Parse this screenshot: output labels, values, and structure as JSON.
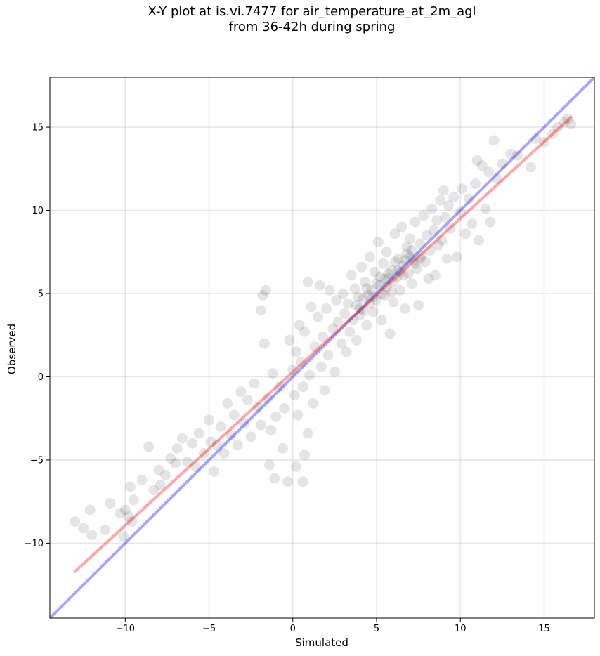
{
  "chart_data": {
    "type": "scatter",
    "title_line1": "X-Y plot at is.vi.7477 for air_temperature_at_2m_agl",
    "title_line2": "from 36-42h during spring",
    "xlabel": "Simulated",
    "ylabel": "Observed",
    "xlim": [
      -14.5,
      18.0
    ],
    "ylim": [
      -14.5,
      18.0
    ],
    "xticks": [
      -10,
      -5,
      0,
      5,
      10,
      15
    ],
    "yticks": [
      -10,
      -5,
      0,
      5,
      10,
      15
    ],
    "tick_labels": [
      "−10",
      "−5",
      "0",
      "5",
      "10",
      "15"
    ],
    "grid": true,
    "point_color": "#000000",
    "point_alpha": 0.1,
    "lines": [
      {
        "role": "one-to-one",
        "color": "#0000ff",
        "alpha": 0.35,
        "x": [
          -14.5,
          18.0
        ],
        "y": [
          -14.5,
          18.0
        ]
      },
      {
        "role": "regression",
        "color": "#ff0000",
        "alpha": 0.35,
        "x": [
          -13.0,
          16.6
        ],
        "y": [
          -11.7,
          15.6
        ]
      }
    ],
    "points": [
      [
        -13.0,
        -8.7
      ],
      [
        -12.5,
        -9.1
      ],
      [
        -12.1,
        -8.0
      ],
      [
        -12.0,
        -9.5
      ],
      [
        -11.2,
        -9.2
      ],
      [
        -10.9,
        -7.6
      ],
      [
        -10.3,
        -8.2
      ],
      [
        -10.1,
        -9.6
      ],
      [
        -10.0,
        -8.0
      ],
      [
        -9.8,
        -8.4
      ],
      [
        -9.6,
        -8.7
      ],
      [
        -9.5,
        -7.4
      ],
      [
        -9.7,
        -6.6
      ],
      [
        -9.0,
        -6.2
      ],
      [
        -8.6,
        -4.2
      ],
      [
        -8.3,
        -6.8
      ],
      [
        -8.0,
        -5.6
      ],
      [
        -7.9,
        -6.5
      ],
      [
        -7.6,
        -5.9
      ],
      [
        -7.3,
        -4.9
      ],
      [
        -7.0,
        -5.2
      ],
      [
        -6.9,
        -4.3
      ],
      [
        -6.6,
        -3.7
      ],
      [
        -6.3,
        -5.1
      ],
      [
        -6.0,
        -4.0
      ],
      [
        -5.8,
        -5.4
      ],
      [
        -5.6,
        -3.4
      ],
      [
        -5.3,
        -4.6
      ],
      [
        -5.0,
        -2.6
      ],
      [
        -4.9,
        -3.9
      ],
      [
        -4.7,
        -5.7
      ],
      [
        -4.5,
        -4.1
      ],
      [
        -4.3,
        -3.0
      ],
      [
        -4.1,
        -4.6
      ],
      [
        -3.9,
        -1.6
      ],
      [
        -3.7,
        -3.5
      ],
      [
        -3.5,
        -2.3
      ],
      [
        -3.3,
        -4.1
      ],
      [
        -3.1,
        -0.9
      ],
      [
        -2.9,
        -2.8
      ],
      [
        -2.7,
        -1.4
      ],
      [
        -2.5,
        -3.6
      ],
      [
        -2.3,
        -0.4
      ],
      [
        -2.1,
        -1.8
      ],
      [
        -1.9,
        -2.9
      ],
      [
        -1.8,
        4.9
      ],
      [
        -1.6,
        5.2
      ],
      [
        -1.9,
        4.0
      ],
      [
        -1.7,
        2.0
      ],
      [
        -1.5,
        -1.3
      ],
      [
        -1.3,
        -3.2
      ],
      [
        -1.2,
        0.2
      ],
      [
        -1.0,
        -2.4
      ],
      [
        -0.8,
        -0.6
      ],
      [
        -0.6,
        -4.3
      ],
      [
        -0.5,
        -1.9
      ],
      [
        -1.4,
        -5.3
      ],
      [
        -1.1,
        -6.1
      ],
      [
        -0.3,
        -6.3
      ],
      [
        0.2,
        -5.4
      ],
      [
        0.6,
        -6.3
      ],
      [
        0.7,
        -4.7
      ],
      [
        0.9,
        -3.4
      ],
      [
        -0.2,
        2.2
      ],
      [
        0.0,
        0.4
      ],
      [
        0.1,
        -1.1
      ],
      [
        0.2,
        1.5
      ],
      [
        0.3,
        -2.3
      ],
      [
        0.4,
        3.1
      ],
      [
        0.5,
        0.9
      ],
      [
        0.6,
        -0.6
      ],
      [
        0.7,
        2.7
      ],
      [
        0.9,
        5.7
      ],
      [
        1.0,
        0.1
      ],
      [
        1.1,
        4.2
      ],
      [
        1.2,
        -1.6
      ],
      [
        1.3,
        1.8
      ],
      [
        1.5,
        3.6
      ],
      [
        1.6,
        5.5
      ],
      [
        1.7,
        0.6
      ],
      [
        1.8,
        2.4
      ],
      [
        1.9,
        -0.8
      ],
      [
        2.0,
        4.1
      ],
      [
        2.1,
        1.3
      ],
      [
        2.2,
        5.2
      ],
      [
        2.4,
        2.9
      ],
      [
        2.5,
        0.3
      ],
      [
        2.6,
        4.6
      ],
      [
        2.7,
        3.3
      ],
      [
        2.9,
        2.0
      ],
      [
        3.0,
        5.0
      ],
      [
        3.1,
        3.8
      ],
      [
        3.2,
        1.5
      ],
      [
        3.3,
        4.4
      ],
      [
        3.4,
        2.7
      ],
      [
        3.5,
        6.1
      ],
      [
        3.6,
        3.4
      ],
      [
        3.7,
        5.3
      ],
      [
        3.8,
        2.2
      ],
      [
        3.9,
        4.8
      ],
      [
        4.0,
        3.7
      ],
      [
        4.1,
        6.6
      ],
      [
        4.2,
        4.0
      ],
      [
        4.3,
        5.7
      ],
      [
        4.4,
        3.1
      ],
      [
        4.5,
        4.9
      ],
      [
        4.6,
        7.2
      ],
      [
        4.7,
        5.2
      ],
      [
        4.8,
        3.9
      ],
      [
        4.9,
        6.3
      ],
      [
        5.0,
        4.6
      ],
      [
        5.1,
        8.1
      ],
      [
        5.2,
        5.5
      ],
      [
        5.3,
        3.4
      ],
      [
        5.4,
        6.8
      ],
      [
        5.5,
        4.9
      ],
      [
        5.6,
        7.5
      ],
      [
        5.7,
        5.9
      ],
      [
        5.8,
        2.6
      ],
      [
        5.9,
        6.4
      ],
      [
        6.0,
        4.5
      ],
      [
        6.1,
        8.6
      ],
      [
        6.2,
        6.0
      ],
      [
        6.3,
        7.1
      ],
      [
        6.4,
        5.2
      ],
      [
        6.5,
        9.0
      ],
      [
        6.6,
        6.7
      ],
      [
        6.7,
        4.1
      ],
      [
        6.8,
        7.8
      ],
      [
        6.9,
        6.2
      ],
      [
        7.0,
        8.3
      ],
      [
        7.1,
        5.6
      ],
      [
        7.2,
        7.0
      ],
      [
        7.3,
        9.3
      ],
      [
        7.4,
        6.5
      ],
      [
        7.5,
        4.3
      ],
      [
        7.6,
        8.0
      ],
      [
        7.7,
        7.3
      ],
      [
        7.8,
        9.7
      ],
      [
        7.9,
        6.9
      ],
      [
        8.0,
        8.5
      ],
      [
        8.1,
        5.9
      ],
      [
        8.2,
        7.6
      ],
      [
        8.3,
        10.1
      ],
      [
        8.4,
        8.8
      ],
      [
        8.5,
        6.1
      ],
      [
        8.6,
        9.4
      ],
      [
        8.7,
        7.9
      ],
      [
        8.8,
        10.6
      ],
      [
        8.9,
        8.2
      ],
      [
        9.0,
        11.2
      ],
      [
        9.1,
        9.6
      ],
      [
        9.2,
        7.1
      ],
      [
        9.3,
        10.3
      ],
      [
        9.4,
        8.9
      ],
      [
        9.6,
        10.8
      ],
      [
        9.8,
        7.2
      ],
      [
        10.0,
        9.9
      ],
      [
        10.1,
        11.3
      ],
      [
        10.3,
        8.6
      ],
      [
        10.5,
        10.7
      ],
      [
        10.7,
        9.2
      ],
      [
        10.9,
        11.6
      ],
      [
        11.0,
        13.0
      ],
      [
        11.1,
        8.2
      ],
      [
        11.3,
        12.7
      ],
      [
        11.5,
        10.1
      ],
      [
        11.7,
        12.3
      ],
      [
        11.8,
        9.3
      ],
      [
        12.0,
        14.2
      ],
      [
        12.2,
        11.9
      ],
      [
        12.5,
        12.8
      ],
      [
        13.0,
        13.4
      ],
      [
        13.4,
        13.3
      ],
      [
        14.2,
        12.6
      ],
      [
        14.5,
        14.3
      ],
      [
        15.0,
        14.1
      ],
      [
        15.5,
        14.6
      ],
      [
        15.8,
        15.0
      ],
      [
        16.2,
        15.3
      ],
      [
        16.4,
        15.5
      ],
      [
        16.6,
        15.2
      ],
      [
        3.8,
        4.3
      ],
      [
        4.2,
        4.7
      ],
      [
        4.6,
        4.4
      ],
      [
        5.0,
        5.6
      ],
      [
        5.3,
        5.0
      ],
      [
        5.7,
        6.2
      ],
      [
        6.0,
        5.7
      ],
      [
        6.3,
        6.4
      ],
      [
        6.6,
        6.1
      ],
      [
        7.0,
        7.2
      ],
      [
        7.3,
        6.8
      ],
      [
        4.4,
        5.3
      ],
      [
        4.8,
        4.8
      ],
      [
        5.2,
        6.0
      ],
      [
        5.6,
        5.4
      ],
      [
        6.1,
        6.9
      ],
      [
        6.4,
        6.3
      ],
      [
        6.8,
        7.4
      ],
      [
        7.1,
        7.6
      ],
      [
        4.0,
        4.1
      ],
      [
        5.5,
        5.9
      ],
      [
        5.9,
        5.1
      ],
      [
        6.7,
        7.0
      ],
      [
        7.6,
        7.1
      ]
    ]
  }
}
